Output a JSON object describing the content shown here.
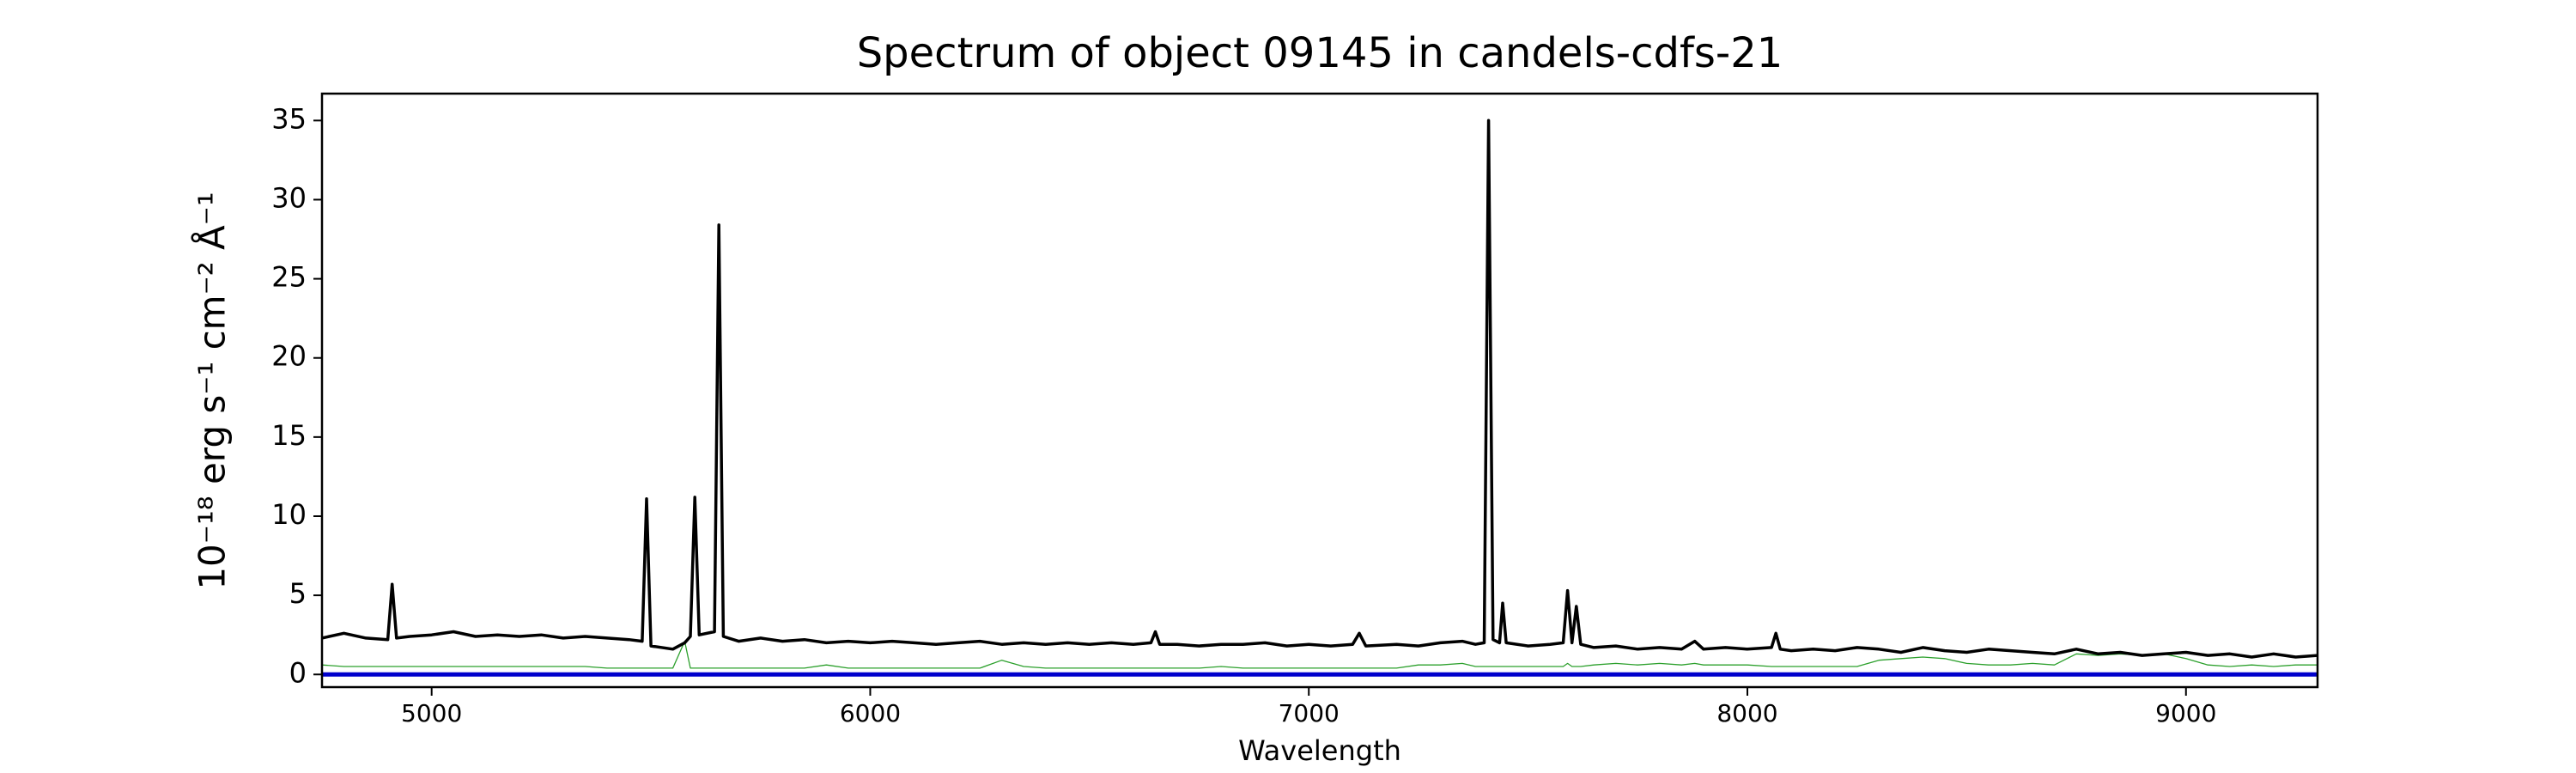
{
  "chart_data": {
    "type": "line",
    "title": "Spectrum of object 09145 in candels-cdfs-21",
    "xlabel": "Wavelength",
    "ylabel": "10⁻¹⁸ erg s⁻¹ cm⁻² Å⁻¹",
    "xlim": [
      4750,
      9300
    ],
    "ylim": [
      -0.8,
      36.7
    ],
    "xticks": [
      5000,
      6000,
      7000,
      8000,
      9000
    ],
    "yticks": [
      0,
      5,
      10,
      15,
      20,
      25,
      30,
      35
    ],
    "hline": {
      "y": 0,
      "color": "#0000cc"
    },
    "x": [
      4750,
      4800,
      4850,
      4900,
      4910,
      4920,
      4950,
      5000,
      5050,
      5100,
      5150,
      5200,
      5250,
      5300,
      5350,
      5400,
      5450,
      5480,
      5490,
      5500,
      5550,
      5577,
      5590,
      5600,
      5610,
      5645,
      5655,
      5665,
      5700,
      5750,
      5800,
      5850,
      5900,
      5950,
      6000,
      6050,
      6100,
      6150,
      6200,
      6250,
      6300,
      6350,
      6400,
      6450,
      6500,
      6550,
      6600,
      6640,
      6650,
      6660,
      6700,
      6750,
      6800,
      6850,
      6900,
      6950,
      7000,
      7050,
      7100,
      7115,
      7130,
      7200,
      7250,
      7300,
      7350,
      7380,
      7400,
      7410,
      7420,
      7435,
      7442,
      7450,
      7500,
      7550,
      7580,
      7590,
      7600,
      7610,
      7620,
      7650,
      7700,
      7750,
      7800,
      7850,
      7880,
      7900,
      7950,
      8000,
      8055,
      8065,
      8075,
      8100,
      8150,
      8200,
      8250,
      8300,
      8350,
      8400,
      8450,
      8500,
      8550,
      8600,
      8650,
      8700,
      8750,
      8800,
      8850,
      8900,
      8950,
      9000,
      9050,
      9100,
      9150,
      9200,
      9250,
      9300
    ],
    "series": [
      {
        "color": "#000000",
        "values": [
          2.3,
          2.6,
          2.3,
          2.2,
          5.7,
          2.3,
          2.4,
          2.5,
          2.7,
          2.4,
          2.5,
          2.4,
          2.5,
          2.3,
          2.4,
          2.3,
          2.2,
          2.1,
          11.1,
          1.8,
          1.6,
          2.0,
          2.4,
          11.2,
          2.5,
          2.7,
          28.4,
          2.4,
          2.1,
          2.3,
          2.1,
          2.2,
          2.0,
          2.1,
          2.0,
          2.1,
          2.0,
          1.9,
          2.0,
          2.1,
          1.9,
          2.0,
          1.9,
          2.0,
          1.9,
          2.0,
          1.9,
          2.0,
          2.7,
          1.9,
          1.9,
          1.8,
          1.9,
          1.9,
          2.0,
          1.8,
          1.9,
          1.8,
          1.9,
          2.6,
          1.8,
          1.9,
          1.8,
          2.0,
          2.1,
          1.9,
          2.0,
          35.0,
          2.2,
          2.0,
          4.5,
          2.0,
          1.8,
          1.9,
          2.0,
          5.3,
          2.0,
          4.3,
          1.9,
          1.7,
          1.8,
          1.6,
          1.7,
          1.6,
          2.1,
          1.6,
          1.7,
          1.6,
          1.7,
          2.6,
          1.6,
          1.5,
          1.6,
          1.5,
          1.7,
          1.6,
          1.4,
          1.7,
          1.5,
          1.4,
          1.6,
          1.5,
          1.4,
          1.3,
          1.6,
          1.3,
          1.4,
          1.2,
          1.3,
          1.4,
          1.2,
          1.3,
          1.1,
          1.3,
          1.1,
          1.2
        ]
      },
      {
        "color": "#2ca02c",
        "values": [
          0.6,
          0.5,
          0.5,
          0.5,
          0.5,
          0.5,
          0.5,
          0.5,
          0.5,
          0.5,
          0.5,
          0.5,
          0.5,
          0.5,
          0.5,
          0.4,
          0.4,
          0.4,
          0.4,
          0.4,
          0.4,
          2.1,
          0.4,
          0.4,
          0.4,
          0.4,
          0.4,
          0.4,
          0.4,
          0.4,
          0.4,
          0.4,
          0.6,
          0.4,
          0.4,
          0.4,
          0.4,
          0.4,
          0.4,
          0.4,
          0.9,
          0.5,
          0.4,
          0.4,
          0.4,
          0.4,
          0.4,
          0.4,
          0.4,
          0.4,
          0.4,
          0.4,
          0.5,
          0.4,
          0.4,
          0.4,
          0.4,
          0.4,
          0.4,
          0.4,
          0.4,
          0.4,
          0.6,
          0.6,
          0.7,
          0.5,
          0.5,
          0.5,
          0.5,
          0.5,
          0.5,
          0.5,
          0.5,
          0.5,
          0.5,
          0.7,
          0.5,
          0.5,
          0.5,
          0.6,
          0.7,
          0.6,
          0.7,
          0.6,
          0.7,
          0.6,
          0.6,
          0.6,
          0.5,
          0.5,
          0.5,
          0.5,
          0.5,
          0.5,
          0.5,
          0.9,
          1.0,
          1.1,
          1.0,
          0.7,
          0.6,
          0.6,
          0.7,
          0.6,
          1.3,
          1.2,
          1.3,
          1.2,
          1.3,
          1.0,
          0.6,
          0.5,
          0.6,
          0.5,
          0.6,
          0.6
        ]
      }
    ]
  }
}
